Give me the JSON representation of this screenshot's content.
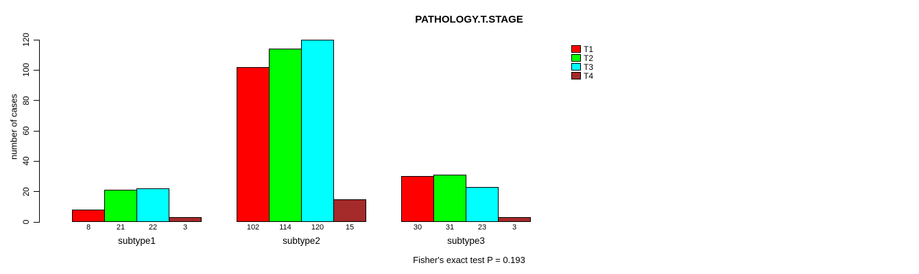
{
  "chart_data": {
    "type": "bar",
    "title": "PATHOLOGY.T.STAGE",
    "ylabel": "number of cases",
    "xlabel": "",
    "categories": [
      "subtype1",
      "subtype2",
      "subtype3"
    ],
    "series": [
      {
        "name": "T1",
        "color": "#FF0000",
        "values": [
          8,
          102,
          30
        ]
      },
      {
        "name": "T2",
        "color": "#00FF00",
        "values": [
          21,
          114,
          31
        ]
      },
      {
        "name": "T3",
        "color": "#00FFFF",
        "values": [
          22,
          120,
          23
        ]
      },
      {
        "name": "T4",
        "color": "#A52A2A",
        "values": [
          3,
          15,
          3
        ]
      }
    ],
    "yticks": [
      0,
      20,
      40,
      60,
      80,
      100,
      120
    ],
    "ylim": [
      0,
      120
    ],
    "grid": false,
    "legend_position": "top-right",
    "bar_value_labels": true,
    "annotation": "Fisher's exact test P = 0.193",
    "background": "#FFFFFF",
    "bar_border_color": "#000000"
  }
}
